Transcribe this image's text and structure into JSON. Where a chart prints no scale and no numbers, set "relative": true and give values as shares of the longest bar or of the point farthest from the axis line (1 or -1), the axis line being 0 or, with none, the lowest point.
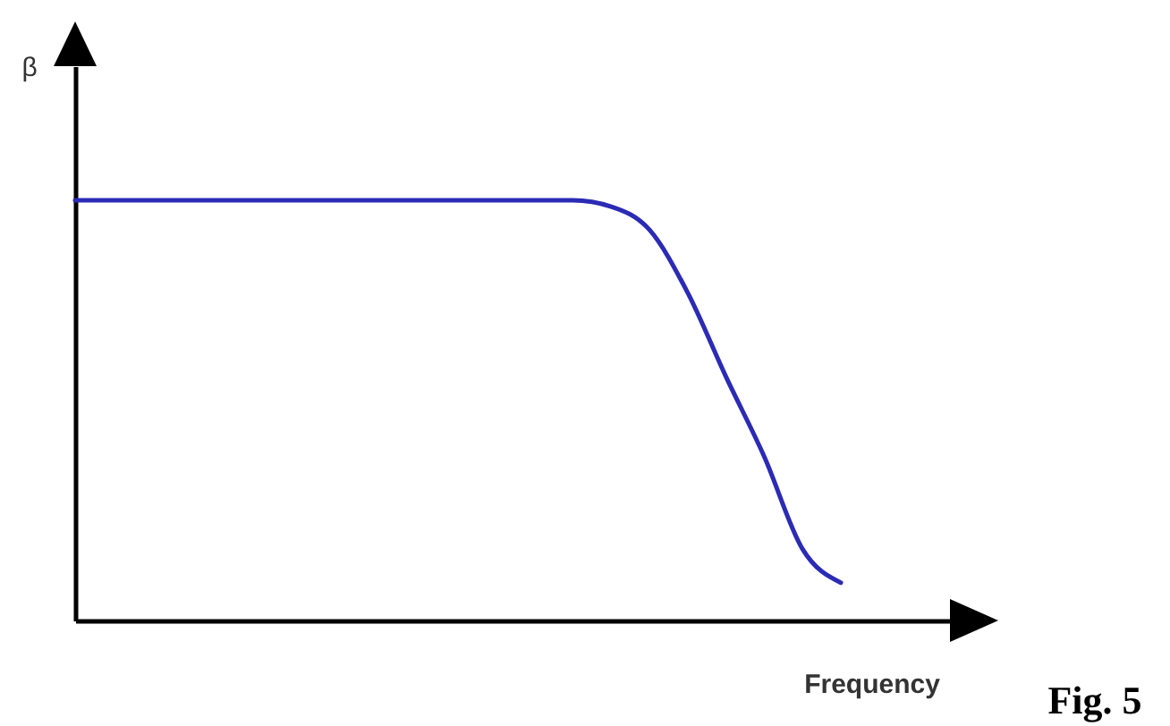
{
  "chart_data": {
    "type": "line",
    "relative": true,
    "ylabel": "β",
    "xlabel": "Frequency",
    "annotations": [
      "Fig. 5"
    ],
    "categories": [
      null,
      null,
      null,
      null,
      null,
      null,
      null,
      null,
      null,
      null,
      null,
      null,
      null,
      null,
      null,
      null,
      null,
      null,
      null,
      null,
      null,
      null,
      null
    ],
    "series": [
      {
        "color": "#2b2bb5",
        "values": [
          1,
          1,
          1,
          1,
          1,
          1,
          1,
          1,
          1,
          1,
          1,
          1,
          1,
          1,
          0.985,
          0.93,
          0.78,
          0.58,
          0.39,
          0.17,
          0.09,
          null,
          null
        ]
      }
    ],
    "line_style": "solid"
  }
}
